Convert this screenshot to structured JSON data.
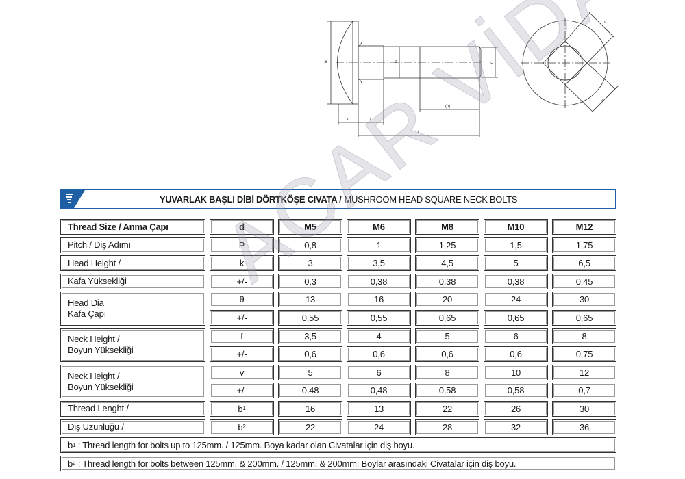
{
  "drawing": {
    "labels": {
      "dk": "dk",
      "ds": "ds",
      "d": "d",
      "b": "(b)",
      "k": "k",
      "f": "f",
      "l": "l",
      "v1": "v",
      "v2": "v"
    }
  },
  "banner": {
    "title_tr": "YUVARLAK BAŞLI DİBİ DÖRTKÖŞE CIVATA /",
    "title_en": "MUSHROOM HEAD SQUARE NECK BOLTS",
    "accent": "#1f5fa6"
  },
  "watermark": "ACAR VİDA",
  "table": {
    "header": [
      "Thread Size / Anma Çapı",
      "d",
      "M5",
      "M6",
      "M8",
      "M10",
      "M12"
    ],
    "rows": [
      {
        "label": "Pitch / Diş Adımı",
        "symbol": "P",
        "values": [
          "0,8",
          "1",
          "1,25",
          "1,5",
          "1,75"
        ]
      },
      {
        "label": "Head Height /",
        "symbol": "k",
        "values": [
          "3",
          "3,5",
          "4,5",
          "5",
          "6,5"
        ]
      },
      {
        "label": "Kafa Yüksekliği",
        "symbol": "+/-",
        "values": [
          "0,3",
          "0,38",
          "0,38",
          "0,38",
          "0,45"
        ]
      },
      {
        "label": "Head Dia\nKafa Çapı",
        "span": 2,
        "symbol": "θ",
        "values": [
          "13",
          "16",
          "20",
          "24",
          "30"
        ]
      },
      {
        "symbol": "+/-",
        "values": [
          "0,55",
          "0,55",
          "0,65",
          "0,65",
          "0,65"
        ]
      },
      {
        "label": "Neck Height /\nBoyun Yüksekliği",
        "span": 2,
        "symbol": "f",
        "values": [
          "3,5",
          "4",
          "5",
          "6",
          "8"
        ]
      },
      {
        "symbol": "+/-",
        "values": [
          "0,6",
          "0,6",
          "0,6",
          "0,6",
          "0,75"
        ]
      },
      {
        "label": "Neck Height /\nBoyun Yüksekliği",
        "span": 2,
        "symbol": "v",
        "values": [
          "5",
          "6",
          "8",
          "10",
          "12"
        ]
      },
      {
        "symbol": "+/-",
        "values": [
          "0,48",
          "0,48",
          "0,58",
          "0,58",
          "0,7"
        ]
      },
      {
        "label": "Thread Lenght /",
        "symbol": "b",
        "sup": "1",
        "values": [
          "16",
          "13",
          "22",
          "26",
          "30"
        ]
      },
      {
        "label": "Diş Uzunluğu /",
        "symbol": "b",
        "sup": "2",
        "values": [
          "22",
          "24",
          "28",
          "32",
          "36"
        ]
      }
    ],
    "notes": [
      {
        "sym": "b",
        "sup": "1",
        "text": " : Thread length for bolts up to 125mm. / 125mm. Boya kadar olan Civatalar için diş boyu."
      },
      {
        "sym": "b",
        "sup": "2",
        "text": " : Thread length for bolts between 125mm. & 200mm. / 125mm. & 200mm. Boylar arasındaki Civatalar için diş boyu."
      }
    ]
  }
}
